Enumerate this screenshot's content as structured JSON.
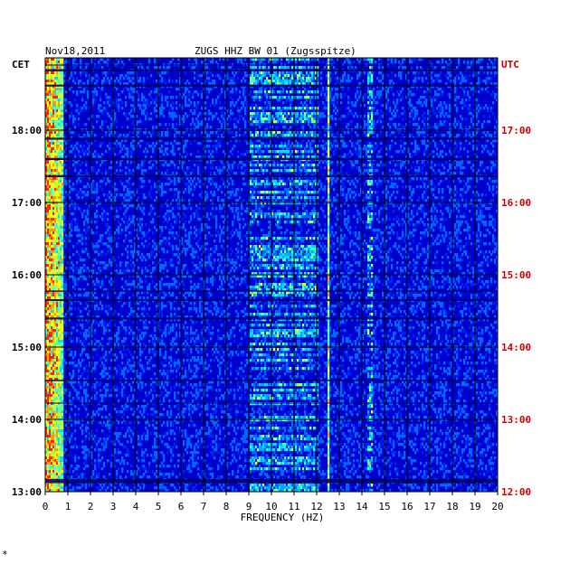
{
  "header": {
    "date": "Nov18,2011",
    "station": "ZUGS HHZ BW 01 (Zugsspitze)",
    "left_tz": "CET",
    "right_tz": "UTC"
  },
  "chart_data": {
    "type": "heatmap",
    "title": "ZUGS HHZ BW 01 (Zugsspitze)",
    "date": "Nov18,2011",
    "xlabel": "FREQUENCY (HZ)",
    "x_ticks": [
      "0",
      "1",
      "2",
      "3",
      "4",
      "5",
      "6",
      "7",
      "8",
      "9",
      "10",
      "11",
      "12",
      "13",
      "14",
      "15",
      "16",
      "17",
      "18",
      "19",
      "20"
    ],
    "xlim": [
      0,
      20
    ],
    "y_ticks_left": [
      "13:00",
      "14:00",
      "15:00",
      "16:00",
      "17:00",
      "18:00"
    ],
    "y_ticks_right": [
      "12:00",
      "13:00",
      "14:00",
      "15:00",
      "16:00",
      "17:00"
    ],
    "ylim_cet": [
      "13:00",
      "19:00"
    ],
    "left_axis_label": "CET",
    "right_axis_label": "UTC",
    "colors": {
      "background": "#0000cc",
      "grid": "#000000",
      "utc_text": "#cc0000"
    },
    "features": [
      {
        "note": "strong low-frequency energy band",
        "x_range": [
          0,
          0.8
        ]
      },
      {
        "note": "narrow spectral line",
        "x": 12.5
      },
      {
        "note": "spectral line",
        "x": 14.3
      }
    ]
  },
  "footer": {
    "mark": "*"
  }
}
